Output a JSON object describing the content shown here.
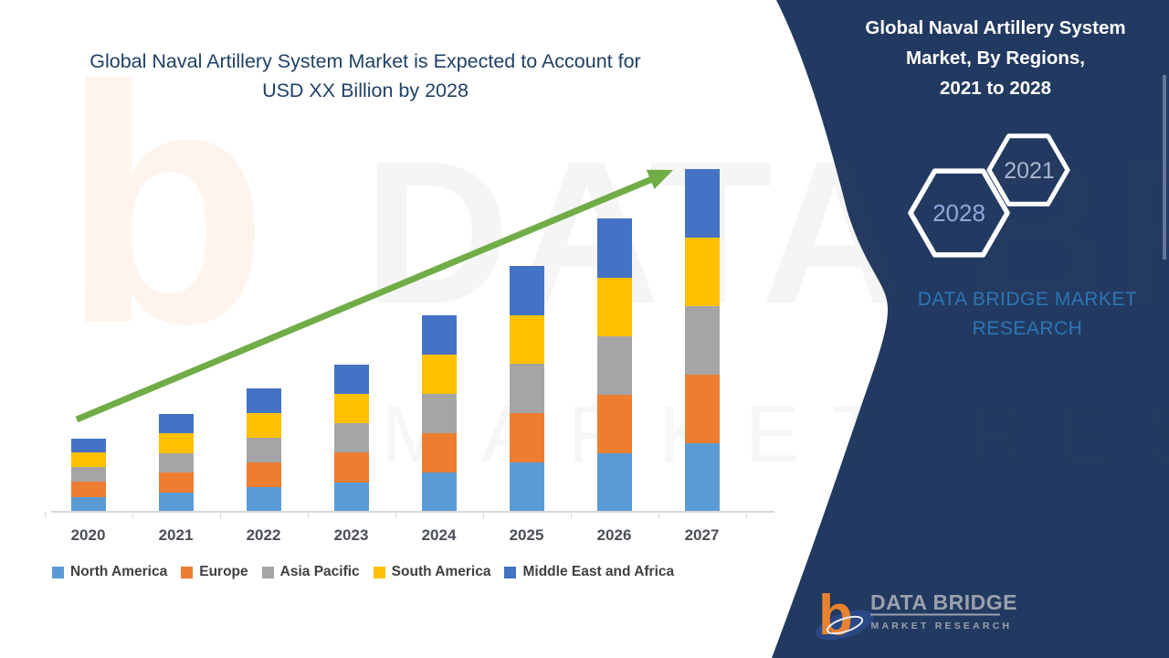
{
  "page": {
    "title_line1": "Global Naval Artillery System Market is Expected to Account for",
    "title_line2": "USD XX Billion by 2028"
  },
  "side_panel": {
    "title_line1": "Global Naval Artillery System",
    "title_line2": "Market, By Regions,",
    "title_line3": "2021 to 2028",
    "hexagon_front_year": "2028",
    "hexagon_back_year": "2021",
    "brand_line1": "DATA BRIDGE MARKET",
    "brand_line2": "RESEARCH",
    "background_color": "#223A61",
    "hexagon_border_color": "#FFFFFF",
    "year_text_color": "#8EA9DB",
    "brand_text_color": "#2E75B6"
  },
  "logo": {
    "name": "DATA BRIDGE",
    "tagline": "MARKET RESEARCH",
    "mark_letter": "b",
    "mark_orange": "#E8822E",
    "mark_blue": "#2A4885",
    "text_color": "#9BA1AC"
  },
  "watermark": {
    "letter": "b",
    "text_large": "DATA BRIDGE",
    "text_small": "MARKET RESEARCH"
  },
  "chart_data": {
    "type": "bar",
    "stacked": true,
    "title": "Global Naval Artillery System Market is Expected to Account for USD XX Billion by 2028",
    "categories": [
      "2020",
      "2021",
      "2022",
      "2023",
      "2024",
      "2025",
      "2026",
      "2027"
    ],
    "series": [
      {
        "name": "North America",
        "color": "#5B9BD5",
        "values": [
          16,
          21,
          27,
          32,
          43,
          54,
          64,
          75
        ]
      },
      {
        "name": "Europe",
        "color": "#ED7D31",
        "values": [
          17,
          22,
          27,
          33,
          43,
          54,
          64,
          75
        ]
      },
      {
        "name": "Asia Pacific",
        "color": "#A5A5A5",
        "values": [
          16,
          21,
          27,
          32,
          43,
          54,
          64,
          75
        ]
      },
      {
        "name": "South America",
        "color": "#FFC000",
        "values": [
          16,
          22,
          27,
          32,
          43,
          53,
          64,
          75
        ]
      },
      {
        "name": "Middle East and Africa",
        "color": "#4472C4",
        "values": [
          15,
          21,
          27,
          32,
          43,
          54,
          65,
          75
        ]
      }
    ],
    "totals": [
      80,
      107,
      135,
      161,
      215,
      269,
      321,
      375
    ],
    "values_unit": "relative units; actual market size shown only as USD XX Billion",
    "y_axis_visible": false,
    "gridlines": false,
    "legend_position": "bottom",
    "trend_arrow": {
      "present": true,
      "color": "#70AD47",
      "direction": "up"
    }
  }
}
